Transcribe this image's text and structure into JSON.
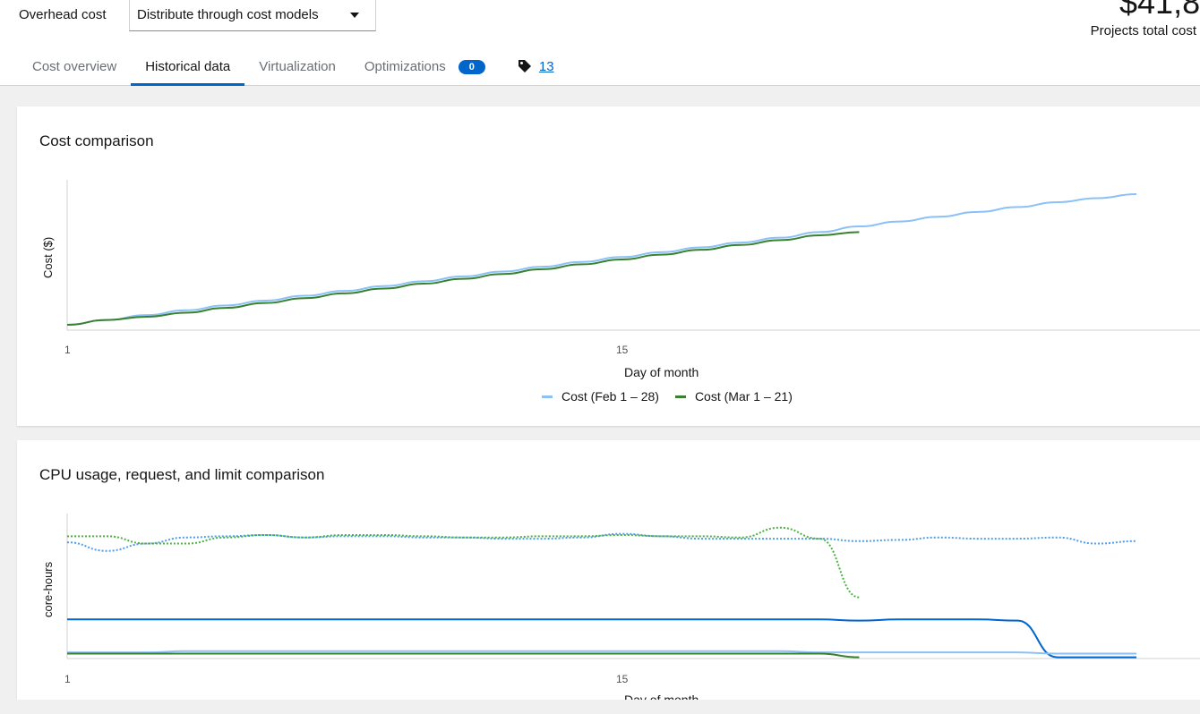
{
  "header": {
    "overhead_label": "Overhead cost",
    "overhead_select_value": "Distribute through cost models",
    "total_amount": "$41,8",
    "total_label": "Projects total cost"
  },
  "tabs": [
    {
      "label": "Cost overview",
      "active": false
    },
    {
      "label": "Historical data",
      "active": true
    },
    {
      "label": "Virtualization",
      "active": false
    },
    {
      "label": "Optimizations",
      "active": false,
      "badge": "0"
    },
    {
      "label": "13",
      "icon": "tag-icon",
      "link": true
    }
  ],
  "cost_card": {
    "title": "Cost comparison"
  },
  "cpu_card": {
    "title": "CPU usage, request, and limit comparison"
  },
  "colors": {
    "feb_cost": "#8bc1f7",
    "mar_cost": "#38812f",
    "feb_request": "#519de9",
    "mar_request": "#4cb140",
    "limit": "#06c",
    "accent": "#0066cc"
  },
  "chart_data": [
    {
      "type": "line",
      "title": "Cost comparison",
      "xlabel": "Day of month",
      "ylabel": "Cost ($)",
      "x_ticks": [
        "1",
        "15"
      ],
      "xlim": [
        1,
        28
      ],
      "legend_position": "bottom",
      "series": [
        {
          "name": "Cost (Feb 1 – 28)",
          "style": "solid",
          "color": "#8bc1f7",
          "x": [
            1,
            2,
            3,
            4,
            5,
            6,
            7,
            8,
            9,
            10,
            11,
            12,
            13,
            14,
            15,
            16,
            17,
            18,
            19,
            20,
            21,
            22,
            23,
            24,
            25,
            26,
            27,
            28
          ],
          "y": [
            0,
            0.6,
            1.2,
            1.8,
            2.4,
            3.0,
            3.6,
            4.2,
            4.8,
            5.4,
            6.0,
            6.6,
            7.2,
            7.8,
            8.4,
            9.0,
            9.6,
            10.2,
            10.8,
            11.5,
            12.2,
            12.8,
            13.4,
            14.0,
            14.6,
            15.2,
            15.7,
            16.2
          ]
        },
        {
          "name": "Cost (Mar 1 – 21)",
          "style": "solid",
          "color": "#38812f",
          "x": [
            1,
            2,
            3,
            4,
            5,
            6,
            7,
            8,
            9,
            10,
            11,
            12,
            13,
            14,
            15,
            16,
            17,
            18,
            19,
            20,
            21
          ],
          "y": [
            0,
            0.6,
            1.0,
            1.5,
            2.1,
            2.7,
            3.3,
            3.9,
            4.5,
            5.1,
            5.7,
            6.3,
            6.9,
            7.5,
            8.1,
            8.7,
            9.3,
            9.9,
            10.5,
            11.1,
            11.5
          ]
        }
      ]
    },
    {
      "type": "line",
      "title": "CPU usage, request, and limit comparison",
      "xlabel": "Day of month",
      "ylabel": "core-hours",
      "x_ticks": [
        "1",
        "15"
      ],
      "xlim": [
        1,
        28
      ],
      "series": [
        {
          "style": "dotted",
          "color": "#519de9",
          "x": [
            1,
            2,
            3,
            4,
            5,
            6,
            7,
            8,
            9,
            10,
            11,
            12,
            13,
            14,
            15,
            16,
            17,
            18,
            19,
            20,
            21,
            22,
            23,
            24,
            25,
            26,
            27,
            28
          ],
          "y": [
            9.5,
            8.8,
            9.4,
            9.9,
            10.0,
            10.1,
            9.9,
            10.0,
            10.0,
            9.9,
            9.9,
            9.8,
            9.8,
            9.9,
            10.2,
            10.0,
            9.8,
            9.8,
            9.8,
            9.8,
            9.6,
            9.7,
            9.9,
            9.8,
            9.8,
            9.9,
            9.4,
            9.6
          ]
        },
        {
          "style": "dotted",
          "color": "#4cb140",
          "x": [
            1,
            2,
            3,
            4,
            5,
            6,
            7,
            8,
            9,
            10,
            11,
            12,
            13,
            14,
            15,
            16,
            17,
            18,
            19,
            20,
            21
          ],
          "y": [
            10.0,
            10.0,
            9.4,
            9.4,
            9.9,
            10.1,
            9.9,
            10.1,
            10.1,
            10.0,
            9.9,
            9.9,
            10.0,
            10.0,
            10.1,
            10.0,
            10.0,
            9.9,
            10.7,
            9.8,
            5.0
          ]
        },
        {
          "style": "solid",
          "color": "#06c",
          "x": [
            1,
            2,
            3,
            4,
            5,
            6,
            7,
            8,
            9,
            10,
            11,
            12,
            13,
            14,
            15,
            16,
            17,
            18,
            19,
            20,
            21,
            22,
            23,
            24,
            25,
            26,
            27,
            28
          ],
          "y": [
            3.2,
            3.2,
            3.2,
            3.2,
            3.2,
            3.2,
            3.2,
            3.2,
            3.2,
            3.2,
            3.2,
            3.2,
            3.2,
            3.2,
            3.2,
            3.2,
            3.2,
            3.2,
            3.2,
            3.2,
            3.1,
            3.2,
            3.2,
            3.2,
            3.1,
            0.1,
            0.1,
            0.1
          ]
        },
        {
          "style": "solid",
          "color": "#8bc1f7",
          "x": [
            1,
            2,
            3,
            4,
            5,
            6,
            7,
            8,
            9,
            10,
            11,
            12,
            13,
            14,
            15,
            16,
            17,
            18,
            19,
            20,
            21,
            22,
            23,
            24,
            25,
            26,
            27,
            28
          ],
          "y": [
            0.5,
            0.5,
            0.5,
            0.6,
            0.6,
            0.6,
            0.6,
            0.6,
            0.6,
            0.6,
            0.6,
            0.6,
            0.6,
            0.6,
            0.6,
            0.6,
            0.6,
            0.6,
            0.6,
            0.5,
            0.5,
            0.5,
            0.5,
            0.5,
            0.5,
            0.4,
            0.4,
            0.4
          ]
        },
        {
          "style": "solid",
          "color": "#38812f",
          "x": [
            1,
            2,
            3,
            4,
            5,
            6,
            7,
            8,
            9,
            10,
            11,
            12,
            13,
            14,
            15,
            16,
            17,
            18,
            19,
            20,
            21
          ],
          "y": [
            0.4,
            0.4,
            0.4,
            0.4,
            0.4,
            0.4,
            0.4,
            0.4,
            0.4,
            0.4,
            0.4,
            0.4,
            0.4,
            0.4,
            0.4,
            0.4,
            0.4,
            0.4,
            0.4,
            0.4,
            0.1
          ]
        }
      ]
    }
  ]
}
